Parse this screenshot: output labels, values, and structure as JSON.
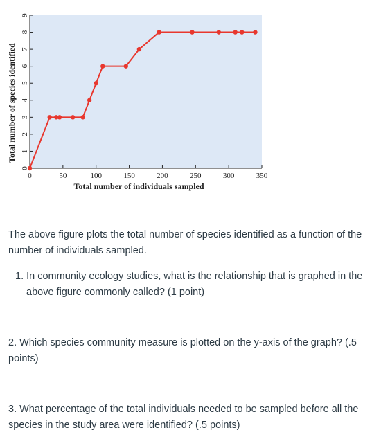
{
  "figure": {
    "chart_data": {
      "type": "line",
      "xlabel": "Total number of individuals sampled",
      "ylabel": "Total number of species identified",
      "xlim": [
        0,
        350
      ],
      "ylim": [
        0,
        9
      ],
      "x_ticks": [
        0,
        50,
        100,
        150,
        200,
        250,
        300,
        350
      ],
      "y_ticks": [
        0,
        1,
        2,
        3,
        4,
        5,
        6,
        7,
        8,
        9
      ],
      "grid": false,
      "plot_background": "#dde8f6",
      "line_color": "#e8372e",
      "marker_color": "#e8372e",
      "series": [
        {
          "x": [
            0,
            10,
            30,
            40,
            45,
            65,
            80,
            90,
            100,
            110,
            145,
            165,
            195,
            245,
            285,
            310,
            320,
            340
          ],
          "y": [
            0,
            1,
            3,
            3,
            3,
            3,
            3,
            4,
            5,
            6,
            6,
            7,
            8,
            8,
            8,
            8,
            8,
            8
          ],
          "markers": [
            true,
            false,
            true,
            true,
            true,
            true,
            true,
            true,
            true,
            true,
            true,
            true,
            true,
            true,
            true,
            true,
            true,
            true
          ]
        }
      ]
    }
  },
  "text": {
    "intro": "The above figure plots the total number of species identified as a function of the number of individuals sampled.",
    "q1": "1. In community ecology studies, what is the relationship that is graphed in the above figure commonly called? (1 point)",
    "q2": "2. Which species community measure is plotted on the y-axis of the graph? (.5 points)",
    "q3": "3. What percentage of the total individuals needed to be sampled before all the species in the study area were identified? (.5 points)"
  }
}
